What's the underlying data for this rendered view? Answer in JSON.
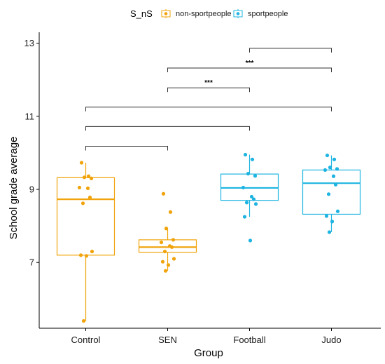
{
  "chart_data": {
    "type": "boxplot",
    "xlabel": "Group",
    "ylabel": "School grade average",
    "ylim": [
      5.2,
      13.3
    ],
    "yticks": [
      7,
      9,
      11,
      13
    ],
    "categories": [
      "Control",
      "SEN",
      "Football",
      "Judo"
    ],
    "legend": {
      "title": "S_nS",
      "position": "top",
      "entries": [
        {
          "label": "non-sportpeople",
          "color": "#F0A30A"
        },
        {
          "label": "sportpeople",
          "color": "#1EB4E1"
        }
      ]
    },
    "series": [
      {
        "category": "Control",
        "group": "non-sportpeople",
        "box": {
          "q1": 7.2,
          "median": 8.73,
          "q3": 9.32,
          "whisker_low": 5.4,
          "whisker_high": 9.73
        },
        "points": [
          9.73,
          9.36,
          9.33,
          9.3,
          9.05,
          9.03,
          8.78,
          8.62,
          7.3,
          7.2,
          7.18,
          5.4
        ]
      },
      {
        "category": "SEN",
        "group": "non-sportpeople",
        "box": {
          "q1": 7.28,
          "median": 7.42,
          "q3": 7.62,
          "whisker_low": 6.77,
          "whisker_high": 7.93
        },
        "points": [
          8.88,
          8.38,
          7.93,
          7.62,
          7.55,
          7.45,
          7.42,
          7.3,
          7.1,
          7.02,
          6.93,
          6.77
        ]
      },
      {
        "category": "Football",
        "group": "sportpeople",
        "box": {
          "q1": 8.7,
          "median": 9.04,
          "q3": 9.42,
          "whisker_low": 8.25,
          "whisker_high": 9.95
        },
        "points": [
          9.95,
          9.82,
          9.43,
          9.37,
          9.05,
          8.8,
          8.73,
          8.64,
          8.6,
          8.25,
          7.6
        ]
      },
      {
        "category": "Judo",
        "group": "sportpeople",
        "box": {
          "q1": 8.32,
          "median": 9.17,
          "q3": 9.53,
          "whisker_low": 7.83,
          "whisker_high": 9.93
        },
        "points": [
          9.93,
          9.82,
          9.6,
          9.56,
          9.53,
          9.36,
          9.13,
          8.87,
          8.4,
          8.27,
          8.12,
          7.83
        ]
      }
    ],
    "significance": [
      {
        "from": "Control",
        "to": "SEN",
        "y": 10.18,
        "label": ""
      },
      {
        "from": "Control",
        "to": "Football",
        "y": 10.72,
        "label": ""
      },
      {
        "from": "Control",
        "to": "Judo",
        "y": 11.25,
        "label": ""
      },
      {
        "from": "SEN",
        "to": "Football",
        "y": 11.78,
        "label": "***"
      },
      {
        "from": "SEN",
        "to": "Judo",
        "y": 12.32,
        "label": "***"
      },
      {
        "from": "Football",
        "to": "Judo",
        "y": 12.86,
        "label": ""
      }
    ]
  }
}
